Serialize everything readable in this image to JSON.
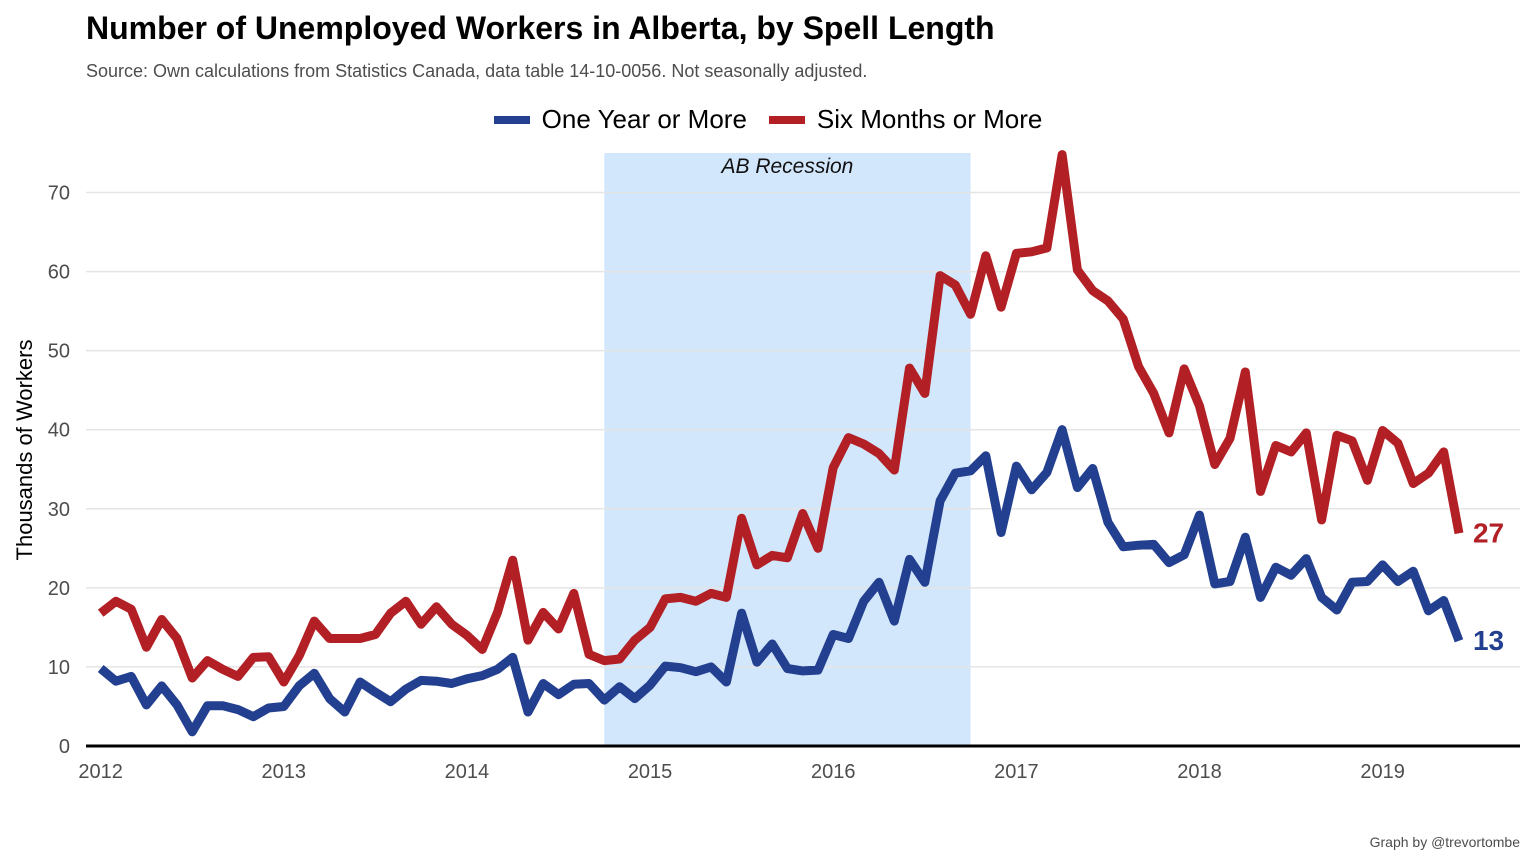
{
  "title": "Number of Unemployed Workers in Alberta, by Spell Length",
  "subtitle": "Source: Own calculations from Statistics Canada, data table 14-10-0056. Not seasonally adjusted.",
  "caption": "Graph by @trevortombe",
  "ylabel": "Thousands of Workers",
  "colors": {
    "one_year": "#233f8f",
    "six_months": "#b22025",
    "recession": "#d2e7fb",
    "grid": "#e5e5e5"
  },
  "chart_data": {
    "type": "line",
    "xlim": [
      2011.92,
      2019.75
    ],
    "ylim": [
      0,
      75
    ],
    "x_ticks": [
      2012,
      2013,
      2014,
      2015,
      2016,
      2017,
      2018,
      2019
    ],
    "x_tick_labels": [
      "2012",
      "2013",
      "2014",
      "2015",
      "2016",
      "2017",
      "2018",
      "2019"
    ],
    "y_ticks": [
      0,
      10,
      20,
      30,
      40,
      50,
      60,
      70
    ],
    "y_tick_labels": [
      "0",
      "10",
      "20",
      "30",
      "40",
      "50",
      "60",
      "70"
    ],
    "grid": true,
    "legend": "top",
    "annotation": {
      "label": "AB Recession",
      "x_start": 2014.75,
      "x_end": 2016.75
    },
    "series": [
      {
        "key": "one_year",
        "name": "One Year or More",
        "end_label": "13",
        "x_start": 2012.0,
        "x_step": 0.08333333,
        "values": [
          9.8,
          8.2,
          8.8,
          5.2,
          7.6,
          5.2,
          1.8,
          5.1,
          5.1,
          4.6,
          3.7,
          4.8,
          5.0,
          7.6,
          9.2,
          6.0,
          4.3,
          8.1,
          6.8,
          5.6,
          7.2,
          8.3,
          8.2,
          7.9,
          8.5,
          8.9,
          9.7,
          11.2,
          4.3,
          7.9,
          6.5,
          7.8,
          7.9,
          5.8,
          7.5,
          6.0,
          7.7,
          10.1,
          9.9,
          9.4,
          10.0,
          8.1,
          16.8,
          10.6,
          12.9,
          9.8,
          9.5,
          9.6,
          14.1,
          13.6,
          18.3,
          20.7,
          15.8,
          23.6,
          20.7,
          31.0,
          34.5,
          34.8,
          36.7,
          27.0,
          35.4,
          32.4,
          34.6,
          40.0,
          32.7,
          35.1,
          28.3,
          25.2,
          25.4,
          25.5,
          23.2,
          24.2,
          29.2,
          20.5,
          20.8,
          26.4,
          18.8,
          22.6,
          21.6,
          23.7,
          18.8,
          17.2,
          20.7,
          20.8,
          22.9,
          20.8,
          22.1,
          17.1,
          18.4,
          13.3
        ]
      },
      {
        "key": "six_months",
        "name": "Six Months or More",
        "end_label": "27",
        "x_start": 2012.0,
        "x_step": 0.08333333,
        "values": [
          16.8,
          18.3,
          17.3,
          12.5,
          16.0,
          13.6,
          8.6,
          10.8,
          9.7,
          8.8,
          11.2,
          11.3,
          8.1,
          11.4,
          15.8,
          13.6,
          13.6,
          13.6,
          14.1,
          16.8,
          18.3,
          15.4,
          17.6,
          15.4,
          14.0,
          12.2,
          16.9,
          23.5,
          13.4,
          16.9,
          14.8,
          19.3,
          11.6,
          10.8,
          11.0,
          13.4,
          15.0,
          18.6,
          18.8,
          18.3,
          19.3,
          18.8,
          28.8,
          22.9,
          24.1,
          23.8,
          29.4,
          25.0,
          35.2,
          39.0,
          38.2,
          37.0,
          34.9,
          47.8,
          44.6,
          59.5,
          58.3,
          54.6,
          62.0,
          55.5,
          62.3,
          62.5,
          63.0,
          74.8,
          60.2,
          57.6,
          56.3,
          54.0,
          48.0,
          44.6,
          39.6,
          47.7,
          43.0,
          35.6,
          38.9,
          47.3,
          32.2,
          38.0,
          37.2,
          39.6,
          28.6,
          39.3,
          38.6,
          33.6,
          39.9,
          38.3,
          33.2,
          34.5,
          37.2,
          26.9
        ]
      }
    ]
  }
}
